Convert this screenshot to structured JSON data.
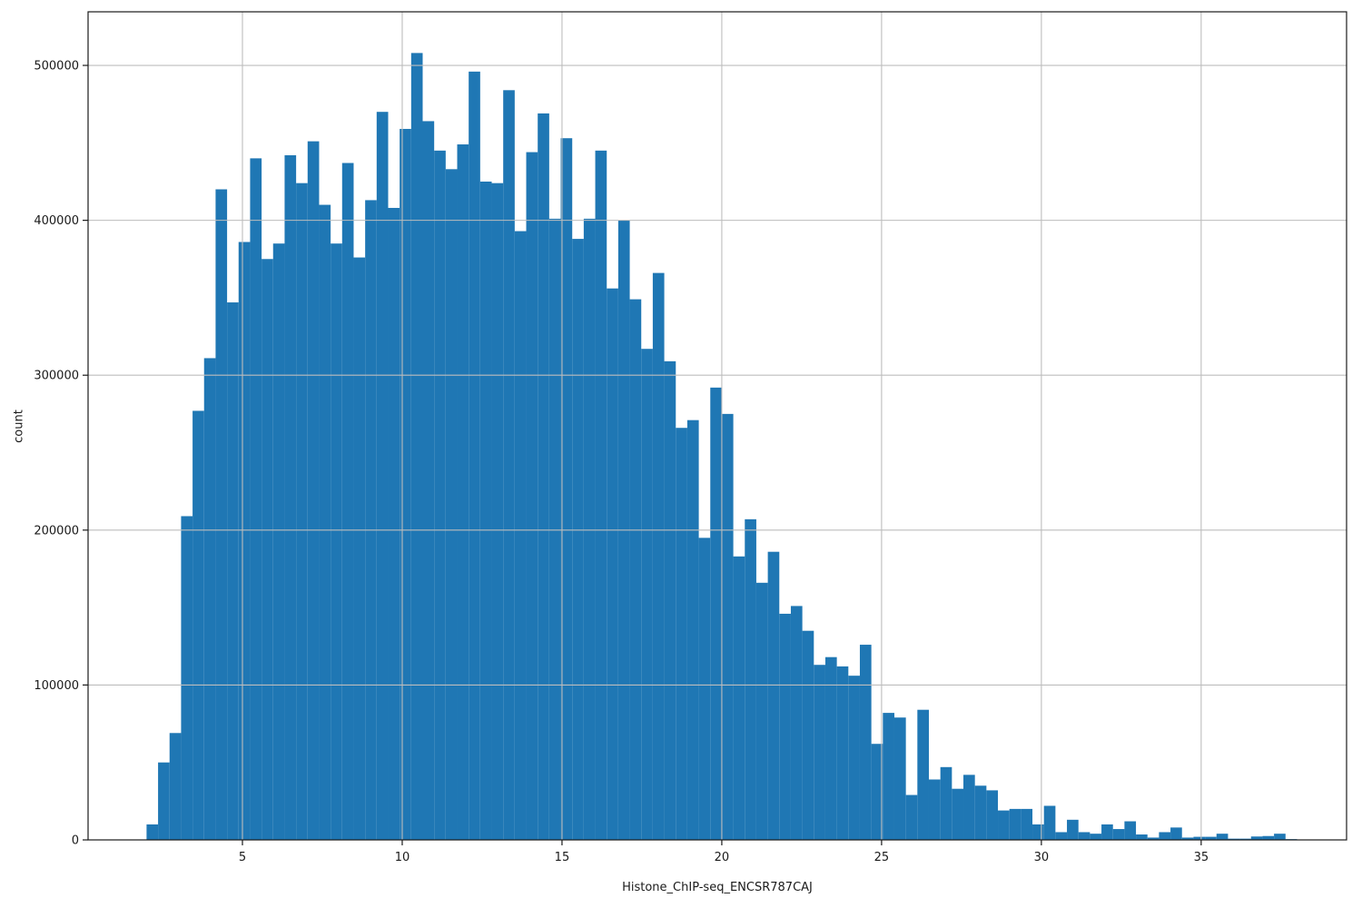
{
  "chart_data": {
    "type": "bar",
    "subtype": "histogram",
    "title": "",
    "xlabel": "Histone_ChIP-seq_ENCSR787CAJ",
    "ylabel": "count",
    "bar_color": "#1f77b4",
    "grid": true,
    "grid_color": "#bdbdbd",
    "spine_color": "#1a1a1a",
    "legend": null,
    "xlim": [
      0.17,
      39.55
    ],
    "ylim": [
      0,
      534600
    ],
    "x_ticks": [
      5,
      10,
      15,
      20,
      25,
      30,
      35
    ],
    "y_ticks": [
      0,
      100000,
      200000,
      300000,
      400000,
      500000
    ],
    "bin_start": 2.0,
    "bin_width": 0.36,
    "counts": [
      10000,
      50000,
      69000,
      209000,
      277000,
      311000,
      420000,
      347000,
      386000,
      440000,
      375000,
      385000,
      442000,
      424000,
      451000,
      410000,
      385000,
      437000,
      376000,
      413000,
      470000,
      408000,
      459000,
      508000,
      464000,
      445000,
      433000,
      449000,
      496000,
      425000,
      424000,
      484000,
      393000,
      444000,
      469000,
      401000,
      453000,
      388000,
      401000,
      445000,
      356000,
      400000,
      349000,
      317000,
      366000,
      309000,
      266000,
      271000,
      195000,
      292000,
      275000,
      183000,
      207000,
      166000,
      186000,
      146000,
      151000,
      135000,
      113000,
      118000,
      112000,
      106000,
      126000,
      62000,
      82000,
      79000,
      29000,
      84000,
      39000,
      47000,
      33000,
      42000,
      35000,
      32000,
      19000,
      20000,
      20000,
      10000,
      22000,
      5000,
      13000,
      5000,
      4000,
      10000,
      7000,
      12000,
      3500,
      1500,
      5000,
      8000,
      1500,
      2000,
      2000,
      4000,
      800,
      800,
      2200,
      2500,
      4000,
      500
    ]
  },
  "layout_note": "histogram of signal values, single blue series, no legend, no title"
}
